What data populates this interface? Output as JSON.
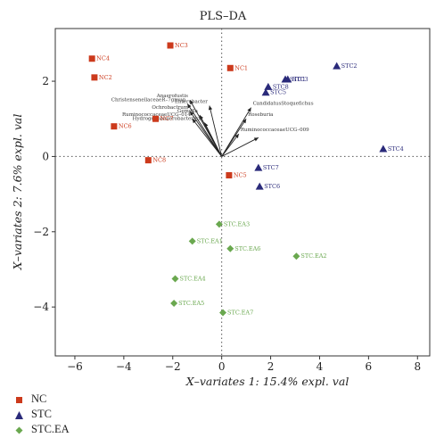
{
  "chart_data": {
    "type": "scatter",
    "title": "PLS–DA",
    "xlabel": "X–variates 1: 15.4% expl. val",
    "ylabel": "X–variates 2: 7.6% expl. val",
    "xlim": [
      -6.8,
      8.5
    ],
    "ylim": [
      -5.3,
      3.4
    ],
    "xticks": [
      -6,
      -4,
      -2,
      0,
      2,
      4,
      6,
      8
    ],
    "yticks": [
      -4,
      -2,
      0,
      2
    ],
    "xtick_labels": [
      "−6",
      "−4",
      "−2",
      "0",
      "2",
      "4",
      "6",
      "8"
    ],
    "ytick_labels": [
      "−4",
      "−2",
      "0",
      "2"
    ],
    "reference_lines": {
      "x": 0,
      "y": 0,
      "style": "dotted"
    },
    "grid": false,
    "legend_position": "bottom-left, below plot",
    "series": [
      {
        "name": "NC",
        "marker": "square",
        "color": "#cc3a1c",
        "points": [
          {
            "label": "NC4",
            "x": -5.3,
            "y": 2.6
          },
          {
            "label": "NC2",
            "x": -5.2,
            "y": 2.1
          },
          {
            "label": "NC3",
            "x": -2.1,
            "y": 2.95
          },
          {
            "label": "NC1",
            "x": 0.35,
            "y": 2.35
          },
          {
            "label": "NC6",
            "x": -4.4,
            "y": 0.8
          },
          {
            "label": "NC7",
            "x": -2.7,
            "y": 1.0
          },
          {
            "label": "NC8",
            "x": -3.0,
            "y": -0.1
          },
          {
            "label": "NC5",
            "x": 0.3,
            "y": -0.5
          }
        ]
      },
      {
        "name": "STC",
        "marker": "triangle",
        "color": "#2a2a7a",
        "points": [
          {
            "label": "STC2",
            "x": 4.7,
            "y": 2.4
          },
          {
            "label": "STC1",
            "x": 2.6,
            "y": 2.05
          },
          {
            "label": "STC3",
            "x": 2.7,
            "y": 2.05
          },
          {
            "label": "STC8",
            "x": 1.9,
            "y": 1.85
          },
          {
            "label": "STC5",
            "x": 1.8,
            "y": 1.7
          },
          {
            "label": "STC4",
            "x": 6.6,
            "y": 0.2
          },
          {
            "label": "STC7",
            "x": 1.5,
            "y": -0.3
          },
          {
            "label": "STC6",
            "x": 1.55,
            "y": -0.8
          }
        ]
      },
      {
        "name": "STC.EA",
        "marker": "diamond",
        "color": "#6aa84f",
        "points": [
          {
            "label": "STC.EA3",
            "x": -0.1,
            "y": -1.8
          },
          {
            "label": "STC.EA1",
            "x": -1.2,
            "y": -2.25
          },
          {
            "label": "STC.EA6",
            "x": 0.35,
            "y": -2.45
          },
          {
            "label": "STC.EA2",
            "x": 3.05,
            "y": -2.65
          },
          {
            "label": "STC.EA4",
            "x": -1.9,
            "y": -3.25
          },
          {
            "label": "STC.EA5",
            "x": -1.95,
            "y": -3.9
          },
          {
            "label": "STC.EA7",
            "x": 0.05,
            "y": -4.15
          }
        ]
      }
    ],
    "loadings": [
      {
        "label": "Anaerofustis",
        "x": -1.3,
        "y": 1.5
      },
      {
        "label": "Enterobacter",
        "x": -0.5,
        "y": 1.35
      },
      {
        "label": "ChristensenellaceaeR–7group",
        "x": -1.4,
        "y": 1.4
      },
      {
        "label": "Ochrobactrum",
        "x": -1.3,
        "y": 1.2
      },
      {
        "label": "Gemella",
        "x": -0.9,
        "y": 1.1
      },
      {
        "label": "RuminococcaceaeUCG–014",
        "x": -1.2,
        "y": 1.0
      },
      {
        "label": "Hydrogenoanaerobacterium",
        "x": -0.7,
        "y": 0.9
      },
      {
        "label": "CandidatusStoquefichus",
        "x": 1.2,
        "y": 1.3
      },
      {
        "label": "Roseburia",
        "x": 1.0,
        "y": 1.0
      },
      {
        "label": "RuminococcaceaeUCG–009",
        "x": 0.7,
        "y": 0.6
      },
      {
        "label": "",
        "x": 1.5,
        "y": 0.5
      }
    ]
  }
}
